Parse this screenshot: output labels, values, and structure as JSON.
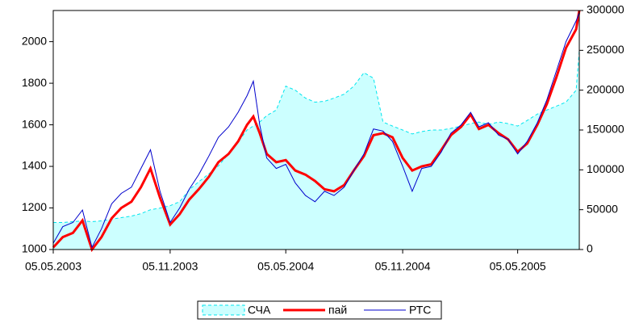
{
  "chart_data": {
    "type": "line",
    "x": [
      "2003-05-05",
      "2003-05-20",
      "2003-06-05",
      "2003-06-20",
      "2003-07-05",
      "2003-07-20",
      "2003-08-05",
      "2003-08-20",
      "2003-09-05",
      "2003-09-20",
      "2003-10-05",
      "2003-10-20",
      "2003-11-05",
      "2003-11-20",
      "2003-12-05",
      "2003-12-20",
      "2004-01-05",
      "2004-01-20",
      "2004-02-05",
      "2004-02-20",
      "2004-03-05",
      "2004-03-15",
      "2004-03-25",
      "2004-04-05",
      "2004-04-20",
      "2004-05-05",
      "2004-05-20",
      "2004-06-05",
      "2004-06-20",
      "2004-07-05",
      "2004-07-20",
      "2004-08-05",
      "2004-08-20",
      "2004-09-05",
      "2004-09-20",
      "2004-10-05",
      "2004-10-20",
      "2004-11-05",
      "2004-11-20",
      "2004-12-05",
      "2004-12-20",
      "2005-01-05",
      "2005-01-20",
      "2005-02-05",
      "2005-02-20",
      "2005-03-05",
      "2005-03-20",
      "2005-04-05",
      "2005-04-20",
      "2005-05-05",
      "2005-05-20",
      "2005-06-05",
      "2005-06-20",
      "2005-07-05",
      "2005-07-20",
      "2005-08-05",
      "2005-08-10"
    ],
    "series": [
      {
        "name": "СЧА",
        "color": "#00e5ee",
        "fill": "#ccffff",
        "style": "area",
        "axis": "y2",
        "values": [
          34000,
          34000,
          35000,
          36000,
          35000,
          36000,
          38000,
          40000,
          42000,
          45000,
          50000,
          52000,
          55000,
          60000,
          75000,
          85000,
          95000,
          105000,
          120000,
          135000,
          150000,
          155000,
          160000,
          168000,
          175000,
          205000,
          200000,
          190000,
          185000,
          186000,
          190000,
          195000,
          205000,
          222000,
          215000,
          160000,
          155000,
          150000,
          145000,
          148000,
          150000,
          150000,
          152000,
          155000,
          158000,
          160000,
          157000,
          160000,
          158000,
          155000,
          162000,
          170000,
          175000,
          180000,
          185000,
          200000,
          250000
        ]
      },
      {
        "name": "пай",
        "color": "#ff0000",
        "width": 3,
        "values": [
          1010,
          1060,
          1080,
          1140,
          1000,
          1060,
          1150,
          1200,
          1230,
          1300,
          1390,
          1250,
          1120,
          1170,
          1240,
          1290,
          1350,
          1420,
          1460,
          1520,
          1600,
          1640,
          1560,
          1460,
          1420,
          1430,
          1380,
          1360,
          1330,
          1290,
          1280,
          1310,
          1380,
          1450,
          1550,
          1560,
          1540,
          1440,
          1380,
          1400,
          1410,
          1480,
          1550,
          1590,
          1650,
          1580,
          1600,
          1560,
          1530,
          1470,
          1510,
          1600,
          1700,
          1830,
          1970,
          2060,
          2150
        ]
      },
      {
        "name": "РТС",
        "color": "#0000cc",
        "width": 1,
        "values": [
          1030,
          1110,
          1130,
          1190,
          1010,
          1100,
          1220,
          1270,
          1300,
          1390,
          1480,
          1280,
          1130,
          1200,
          1290,
          1360,
          1450,
          1540,
          1590,
          1660,
          1740,
          1810,
          1600,
          1440,
          1390,
          1410,
          1320,
          1260,
          1230,
          1280,
          1260,
          1300,
          1380,
          1460,
          1580,
          1570,
          1520,
          1400,
          1280,
          1390,
          1400,
          1470,
          1560,
          1600,
          1660,
          1590,
          1610,
          1550,
          1530,
          1460,
          1520,
          1610,
          1720,
          1860,
          2000,
          2100,
          2140
        ]
      }
    ],
    "xlim": [
      "2003-05-05",
      "2005-08-10"
    ],
    "xticks": [
      {
        "value": "2003-05-05",
        "label": "05.05.2003"
      },
      {
        "value": "2003-11-05",
        "label": "05.11.2003"
      },
      {
        "value": "2004-05-05",
        "label": "05.05.2004"
      },
      {
        "value": "2004-11-05",
        "label": "05.11.2004"
      },
      {
        "value": "2005-05-05",
        "label": "05.05.2005"
      }
    ],
    "ylim": [
      1000,
      2150
    ],
    "yticks": [
      1000,
      1200,
      1400,
      1600,
      1800,
      2000
    ],
    "y2lim": [
      0,
      300000
    ],
    "y2ticks": [
      0,
      50000,
      100000,
      150000,
      200000,
      250000,
      300000
    ],
    "legend": "bottom"
  }
}
